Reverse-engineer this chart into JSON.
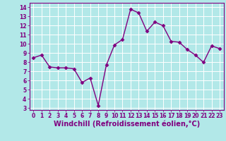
{
  "x": [
    0,
    1,
    2,
    3,
    4,
    5,
    6,
    7,
    8,
    9,
    10,
    11,
    12,
    13,
    14,
    15,
    16,
    17,
    18,
    19,
    20,
    21,
    22,
    23
  ],
  "y": [
    8.5,
    8.8,
    7.5,
    7.4,
    7.4,
    7.3,
    5.8,
    6.3,
    3.3,
    7.7,
    9.9,
    10.5,
    13.8,
    13.4,
    11.4,
    12.4,
    12.0,
    10.3,
    10.2,
    9.4,
    8.8,
    8.0,
    9.8,
    9.5
  ],
  "line_color": "#800080",
  "marker_color": "#800080",
  "bg_color": "#b2e8e8",
  "grid_color": "#ffffff",
  "xlabel": "Windchill (Refroidissement éolien,°C)",
  "xlabel_color": "#800080",
  "xlim": [
    -0.5,
    23.5
  ],
  "ylim": [
    2.8,
    14.5
  ],
  "yticks": [
    3,
    4,
    5,
    6,
    7,
    8,
    9,
    10,
    11,
    12,
    13,
    14
  ],
  "xticks": [
    0,
    1,
    2,
    3,
    4,
    5,
    6,
    7,
    8,
    9,
    10,
    11,
    12,
    13,
    14,
    15,
    16,
    17,
    18,
    19,
    20,
    21,
    22,
    23
  ],
  "tick_color": "#800080",
  "tick_fontsize": 5.5,
  "xlabel_fontsize": 7.0,
  "linewidth": 1.0,
  "markersize": 2.5
}
